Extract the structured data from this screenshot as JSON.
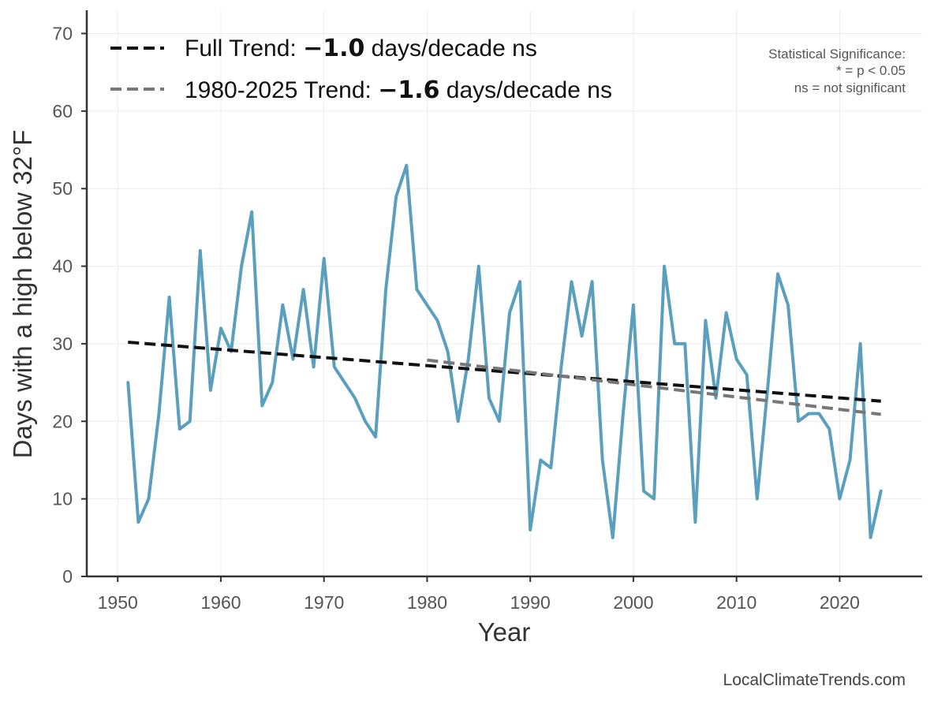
{
  "chart_data": {
    "type": "line",
    "xlabel": "Year",
    "ylabel": "Days with a high below 32°F",
    "xlim": [
      1947,
      2028
    ],
    "ylim": [
      0,
      73
    ],
    "xticks": [
      1950,
      1960,
      1970,
      1980,
      1990,
      2000,
      2010,
      2020
    ],
    "yticks": [
      0,
      10,
      20,
      30,
      40,
      50,
      60,
      70
    ],
    "grid": true,
    "legend_placement": "top-left",
    "series": [
      {
        "color": "#5a9fbd",
        "x": [
          1951,
          1952,
          1953,
          1954,
          1955,
          1956,
          1957,
          1958,
          1959,
          1960,
          1961,
          1962,
          1963,
          1964,
          1965,
          1966,
          1967,
          1968,
          1969,
          1970,
          1971,
          1972,
          1973,
          1974,
          1975,
          1976,
          1977,
          1978,
          1979,
          1980,
          1981,
          1982,
          1983,
          1984,
          1985,
          1986,
          1987,
          1988,
          1989,
          1990,
          1991,
          1992,
          1993,
          1994,
          1995,
          1996,
          1997,
          1998,
          1999,
          2000,
          2001,
          2002,
          2003,
          2004,
          2005,
          2006,
          2007,
          2008,
          2009,
          2010,
          2011,
          2012,
          2013,
          2014,
          2015,
          2016,
          2017,
          2018,
          2019,
          2020,
          2021,
          2022,
          2023,
          2024
        ],
        "values": [
          25,
          7,
          10,
          21,
          36,
          19,
          20,
          42,
          24,
          32,
          29,
          40,
          47,
          22,
          25,
          35,
          28,
          37,
          27,
          41,
          27,
          25,
          23,
          20,
          18,
          37,
          49,
          53,
          37,
          35,
          33,
          29,
          20,
          28,
          40,
          23,
          20,
          34,
          38,
          6,
          15,
          14,
          27,
          38,
          31,
          38,
          15,
          5,
          21,
          35,
          11,
          10,
          40,
          30,
          30,
          7,
          33,
          23,
          34,
          28,
          26,
          10,
          24,
          39,
          35,
          20,
          21,
          21,
          19,
          10,
          15,
          30,
          5,
          11
        ]
      }
    ],
    "trends": [
      {
        "label_prefix": "Full Trend: ",
        "value": "−1.0",
        "label_suffix": " days/decade ns",
        "x": [
          1951,
          2024
        ],
        "y": [
          30.2,
          22.6
        ],
        "color": "#111111"
      },
      {
        "label_prefix": "1980-2025 Trend: ",
        "value": "−1.6",
        "label_suffix": " days/decade ns",
        "x": [
          1980,
          2024
        ],
        "y": [
          27.9,
          20.9
        ],
        "color": "#777777"
      }
    ],
    "significance_note": [
      "Statistical Significance:",
      "* = p < 0.05",
      "ns = not significant"
    ],
    "credit": "LocalClimateTrends.com"
  }
}
